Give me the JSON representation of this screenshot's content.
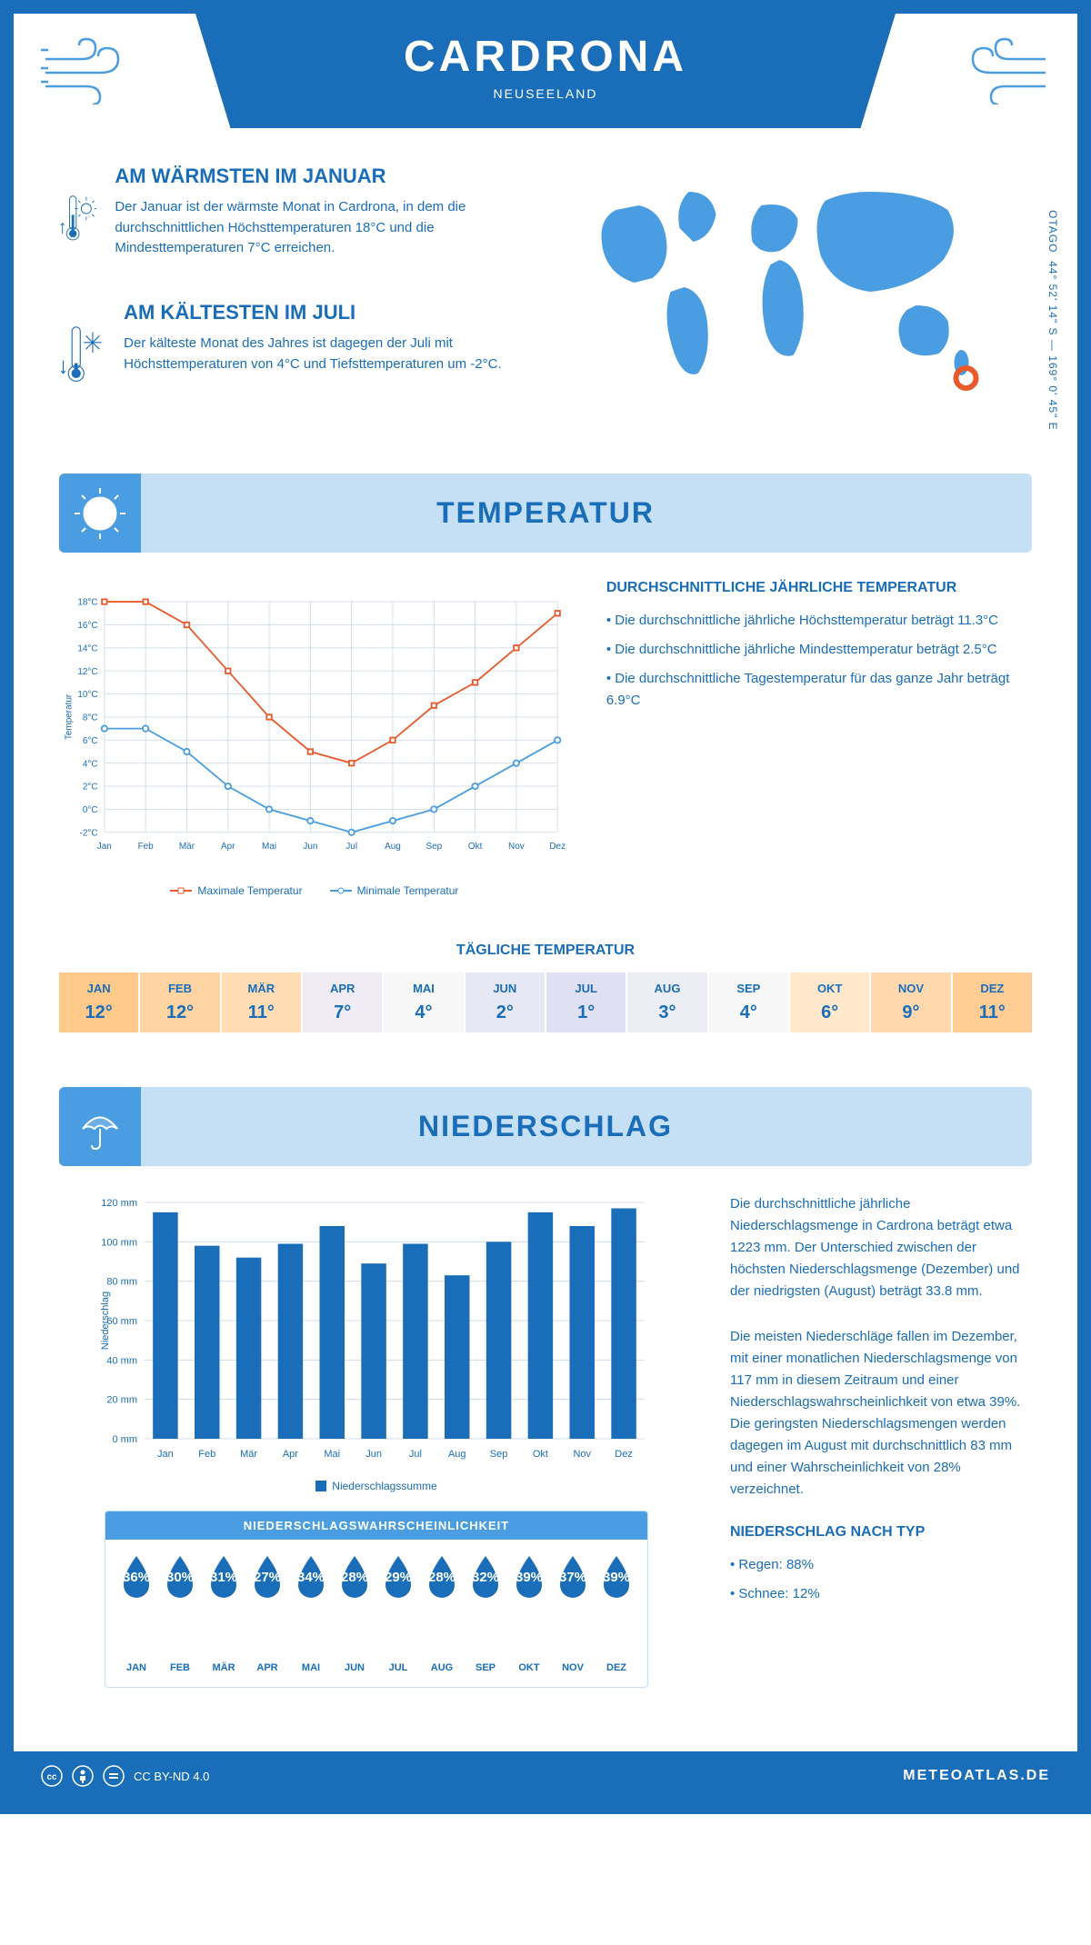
{
  "header": {
    "title": "CARDRONA",
    "subtitle": "NEUSEELAND"
  },
  "coords": "44° 52' 14\" S — 169° 0' 45\" E",
  "region": "OTAGO",
  "warmest": {
    "title": "AM WÄRMSTEN IM JANUAR",
    "text": "Der Januar ist der wärmste Monat in Cardrona, in dem die durchschnittlichen Höchsttemperaturen 18°C und die Mindesttemperaturen 7°C erreichen."
  },
  "coldest": {
    "title": "AM KÄLTESTEN IM JULI",
    "text": "Der kälteste Monat des Jahres ist dagegen der Juli mit Höchsttemperaturen von 4°C und Tiefsttemperaturen um -2°C."
  },
  "temp_section": {
    "title": "TEMPERATUR"
  },
  "temp_chart": {
    "months": [
      "Jan",
      "Feb",
      "Mär",
      "Apr",
      "Mai",
      "Jun",
      "Jul",
      "Aug",
      "Sep",
      "Okt",
      "Nov",
      "Dez"
    ],
    "max": [
      18,
      18,
      16,
      12,
      8,
      5,
      4,
      6,
      9,
      11,
      14,
      17
    ],
    "min": [
      7,
      7,
      5,
      2,
      0,
      -1,
      -2,
      -1,
      0,
      2,
      4,
      6
    ],
    "ymin": -2,
    "ymax": 18,
    "ystep": 2,
    "ylabel": "Temperatur",
    "max_color": "#e85a2c",
    "min_color": "#4a9de0",
    "grid_color": "#d0dce8",
    "legend_max": "Maximale Temperatur",
    "legend_min": "Minimale Temperatur"
  },
  "temp_info": {
    "title": "DURCHSCHNITTLICHE JÄHRLICHE TEMPERATUR",
    "bullets": [
      "Die durchschnittliche jährliche Höchsttemperatur beträgt 11.3°C",
      "Die durchschnittliche jährliche Mindesttemperatur beträgt 2.5°C",
      "Die durchschnittliche Tagestemperatur für das ganze Jahr beträgt 6.9°C"
    ]
  },
  "daily_temp": {
    "title": "TÄGLICHE TEMPERATUR",
    "months": [
      "JAN",
      "FEB",
      "MÄR",
      "APR",
      "MAI",
      "JUN",
      "JUL",
      "AUG",
      "SEP",
      "OKT",
      "NOV",
      "DEZ"
    ],
    "values": [
      "12°",
      "12°",
      "11°",
      "7°",
      "4°",
      "2°",
      "1°",
      "3°",
      "4°",
      "6°",
      "9°",
      "11°"
    ],
    "colors": [
      "#ffc98a",
      "#ffd4a0",
      "#ffdcb3",
      "#f0ecf5",
      "#f7f7f7",
      "#e8e8f5",
      "#e0e0f2",
      "#ececf5",
      "#f7f7f7",
      "#ffe8cc",
      "#ffd9ad",
      "#ffcc94"
    ]
  },
  "precip_section": {
    "title": "NIEDERSCHLAG"
  },
  "precip_chart": {
    "months": [
      "Jan",
      "Feb",
      "Mär",
      "Apr",
      "Mai",
      "Jun",
      "Jul",
      "Aug",
      "Sep",
      "Okt",
      "Nov",
      "Dez"
    ],
    "values": [
      115,
      98,
      92,
      99,
      108,
      89,
      99,
      83,
      100,
      115,
      108,
      117
    ],
    "ymax": 120,
    "ystep": 20,
    "ylabel": "Niederschlag",
    "bar_color": "#1a6db8",
    "grid_color": "#d0dce8",
    "legend": "Niederschlagssumme"
  },
  "precip_text": {
    "p1": "Die durchschnittliche jährliche Niederschlagsmenge in Cardrona beträgt etwa 1223 mm. Der Unterschied zwischen der höchsten Niederschlagsmenge (Dezember) und der niedrigsten (August) beträgt 33.8 mm.",
    "p2": "Die meisten Niederschläge fallen im Dezember, mit einer monatlichen Niederschlagsmenge von 117 mm in diesem Zeitraum und einer Niederschlagswahrscheinlichkeit von etwa 39%. Die geringsten Niederschlagsmengen werden dagegen im August mit durchschnittlich 83 mm und einer Wahrscheinlichkeit von 28% verzeichnet.",
    "type_title": "NIEDERSCHLAG NACH TYP",
    "types": [
      "Regen: 88%",
      "Schnee: 12%"
    ]
  },
  "prob": {
    "title": "NIEDERSCHLAGSWAHRSCHEINLICHKEIT",
    "months": [
      "JAN",
      "FEB",
      "MÄR",
      "APR",
      "MAI",
      "JUN",
      "JUL",
      "AUG",
      "SEP",
      "OKT",
      "NOV",
      "DEZ"
    ],
    "values": [
      "36%",
      "30%",
      "31%",
      "27%",
      "34%",
      "28%",
      "29%",
      "28%",
      "32%",
      "39%",
      "37%",
      "39%"
    ]
  },
  "footer": {
    "license": "CC BY-ND 4.0",
    "site": "METEOATLAS.DE"
  }
}
